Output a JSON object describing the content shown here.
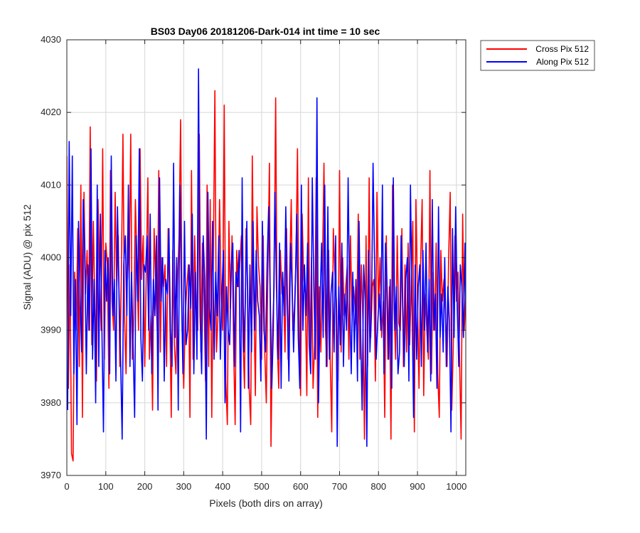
{
  "chart_data": {
    "type": "line",
    "title": "BS03 Day06 20181206-Dark-014 int time = 10 sec",
    "xlabel": "Pixels (both dirs on array)",
    "ylabel": "Signal (ADU) @ pix 512",
    "xlim": [
      0,
      1024
    ],
    "ylim": [
      3970,
      4030
    ],
    "xticks": [
      0,
      100,
      200,
      300,
      400,
      500,
      600,
      700,
      800,
      900,
      1000
    ],
    "yticks": [
      3970,
      3980,
      3990,
      4000,
      4010,
      4020,
      4030
    ],
    "grid": true,
    "legend_position": "outside-top-right",
    "series": [
      {
        "name": "Cross Pix 512",
        "color": "#ff0000",
        "x_start": 0,
        "x_step": 4,
        "values": [
          4014,
          3982,
          3999,
          3973,
          3972,
          3998,
          3990,
          4004,
          3985,
          4010,
          3978,
          4009,
          3995,
          4001,
          3990,
          4018,
          3988,
          4005,
          3993,
          3983,
          4008,
          3997,
          3990,
          4015,
          3986,
          4002,
          3999,
          3982,
          4012,
          3994,
          3990,
          4009,
          3996,
          4003,
          3985,
          3998,
          4017,
          3992,
          3984,
          4003,
          3997,
          4017,
          3986,
          3992,
          4008,
          3999,
          3990,
          4015,
          3997,
          4003,
          3985,
          3998,
          4011,
          3986,
          3992,
          3979,
          4004,
          3997,
          3990,
          4012,
          3987,
          4000,
          3996,
          3999,
          3985,
          4004,
          3993,
          3978,
          4001,
          3988,
          3984,
          3996,
          4003,
          4019,
          3990,
          3982,
          3992,
          3996,
          3999,
          3978,
          4012,
          3986,
          4003,
          3993,
          3990,
          4017,
          3987,
          4002,
          3995,
          3983,
          4010,
          3985,
          4008,
          3978,
          4000,
          4023,
          3987,
          3992,
          4008,
          3995,
          3990,
          4021,
          3983,
          3977,
          4005,
          3993,
          4003,
          3988,
          3977,
          4001,
          3996,
          3999,
          4003,
          3989,
          3982,
          4004,
          3996,
          3982,
          3977,
          4014,
          3994,
          3981,
          4007,
          3999,
          3996,
          3986,
          4003,
          3987,
          3980,
          3998,
          4013,
          3974,
          3990,
          3996,
          4022,
          3988,
          3982,
          4001,
          3995,
          3996,
          3987,
          4004,
          3986,
          3998,
          4008,
          3990,
          3993,
          3999,
          4015,
          3989,
          3981,
          4006,
          3997,
          3995,
          3981,
          4011,
          3986,
          4000,
          3982,
          3988,
          4011,
          3978,
          3996,
          3987,
          3998,
          4013,
          3990,
          3985,
          4001,
          3986,
          3976,
          4004,
          3998,
          3994,
          3983,
          4012,
          3987,
          4000,
          3992,
          3996,
          3999,
          3986,
          4003,
          3992,
          3996,
          3993,
          3990,
          4006,
          3986,
          3999,
          3991,
          3975,
          4003,
          3985,
          4011,
          3989,
          3996,
          3997,
          3983,
          4009,
          3993,
          4000,
          3989,
          3994,
          3978,
          4003,
          3986,
          3996,
          3975,
          4010,
          3993,
          3986,
          4003,
          3991,
          3990,
          4004,
          3985,
          3999,
          3987,
          4002,
          3988,
          3996,
          4005,
          3976,
          4008,
          3994,
          3982,
          3999,
          4008,
          3981,
          3995,
          3990,
          3986,
          4012,
          3984,
          3998,
          3990,
          4002,
          3984,
          3978,
          4001,
          3994,
          3997,
          3992,
          3985,
          4000,
          4009,
          3979,
          3988,
          4003,
          3994,
          3998,
          3986,
          3975,
          4006,
          3990,
          3995,
          3987,
          4003,
          3992,
          4011,
          3986,
          3997,
          3983,
          4007,
          3995,
          4012,
          3985,
          3998,
          3991,
          4001
        ]
      },
      {
        "name": "Along Pix 512",
        "color": "#0000ff",
        "x_start": 2,
        "x_step": 4,
        "values": [
          3979,
          4016,
          3992,
          4014,
          3984,
          3997,
          3977,
          4005,
          3995,
          3987,
          4008,
          4001,
          3984,
          3999,
          3990,
          4015,
          3986,
          3997,
          3980,
          4010,
          3985,
          4006,
          3990,
          3976,
          4001,
          3994,
          4000,
          3984,
          4014,
          3992,
          3997,
          3983,
          4007,
          3995,
          3986,
          3975,
          3999,
          4003,
          3992,
          4010,
          3985,
          3998,
          3988,
          3978,
          4003,
          3994,
          4015,
          3989,
          3983,
          3999,
          3998,
          4003,
          3990,
          4006,
          3984,
          3997,
          3992,
          4003,
          3979,
          4011,
          3994,
          4000,
          3983,
          3997,
          3995,
          4004,
          3990,
          3985,
          4013,
          3989,
          4000,
          3979,
          4010,
          3996,
          3984,
          4005,
          3988,
          3990,
          3999,
          3993,
          4006,
          3984,
          3998,
          3986,
          4026,
          3992,
          3984,
          4003,
          3997,
          3975,
          4009,
          3993,
          3990,
          4005,
          3986,
          3998,
          3992,
          4003,
          3986,
          3995,
          4001,
          3980,
          3996,
          3990,
          3988,
          3999,
          4002,
          3985,
          3998,
          3996,
          4001,
          3976,
          4011,
          3987,
          3994,
          4005,
          3982,
          3999,
          3987,
          4005,
          3990,
          4001,
          3994,
          3992,
          3983,
          4005,
          3990,
          3987,
          3999,
          4007,
          3995,
          3982,
          3990,
          4009,
          3996,
          3986,
          4002,
          3982,
          3998,
          3992,
          4007,
          3993,
          3983,
          4002,
          3996,
          3987,
          3995,
          4006,
          3989,
          3982,
          4010,
          3990,
          3999,
          3992,
          4002,
          3988,
          3984,
          4011,
          3996,
          3986,
          4022,
          3980,
          3994,
          4002,
          3989,
          4010,
          3985,
          4007,
          3986,
          3995,
          3998,
          3987,
          4003,
          3974,
          3996,
          3988,
          4002,
          3985,
          3995,
          3990,
          4011,
          3994,
          3984,
          3998,
          3987,
          3997,
          3983,
          4005,
          3990,
          3979,
          3999,
          3994,
          3974,
          4001,
          3987,
          3993,
          4013,
          3999,
          3986,
          3991,
          3995,
          3990,
          4010,
          3984,
          4002,
          3996,
          3986,
          3997,
          3982,
          4011,
          3990,
          3996,
          3984,
          3987,
          4003,
          3993,
          3985,
          3997,
          4000,
          3983,
          4010,
          3994,
          3978,
          3999,
          3986,
          3996,
          3999,
          3985,
          4001,
          3990,
          4002,
          3987,
          3997,
          3983,
          4008,
          3990,
          3995,
          3982,
          4007,
          3989,
          3995,
          3987,
          4000,
          3985,
          3996,
          3991,
          3976,
          4004,
          3989,
          4007,
          3994,
          3985,
          3999,
          3996,
          3989,
          4002,
          3984,
          3994,
          3999,
          3987,
          3993,
          3985,
          4000,
          3995
        ]
      }
    ]
  }
}
